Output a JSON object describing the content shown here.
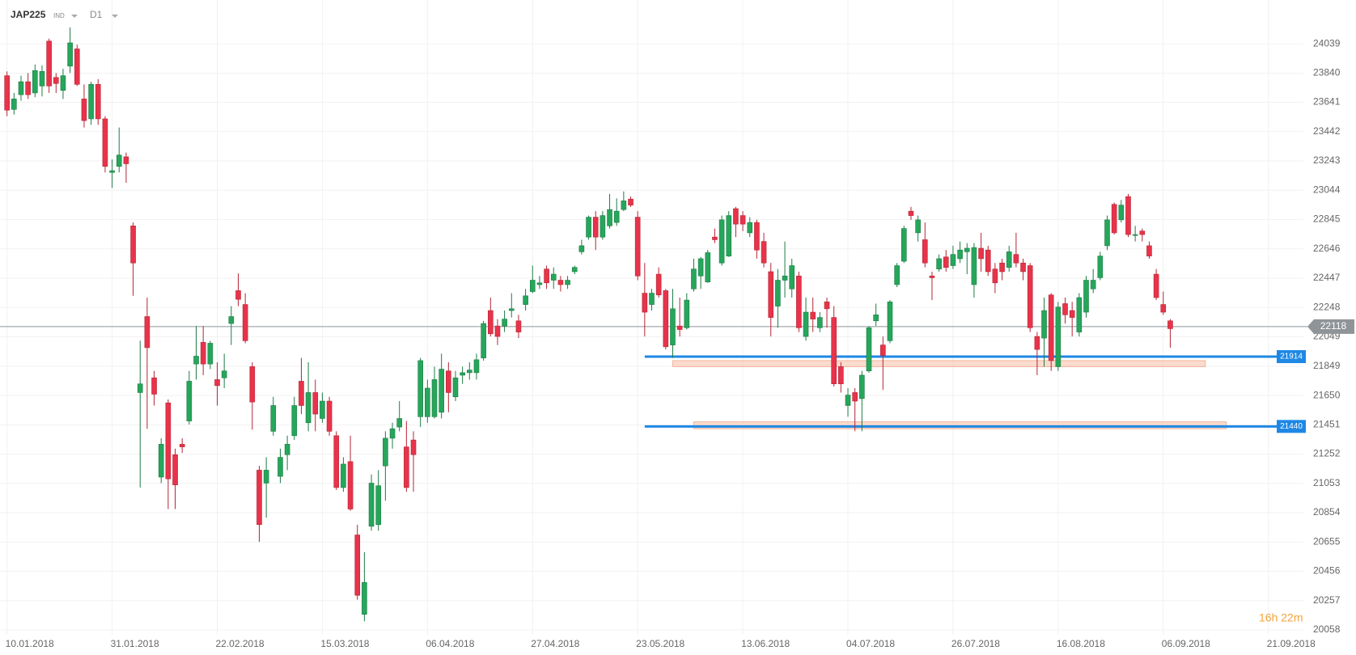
{
  "chart_data": {
    "type": "candlestick",
    "title": "JAP225",
    "badge": "IND",
    "timeframe": "D1",
    "timer": "16h 22m",
    "up_color": "#26a65b",
    "down_color": "#e8334a",
    "grid": true,
    "xlim": [
      -1,
      185
    ],
    "ylim": [
      20025,
      24336
    ],
    "xticks": [
      {
        "value": 0,
        "label": "10.01.2018"
      },
      {
        "value": 15,
        "label": "31.01.2018"
      },
      {
        "value": 30,
        "label": "22.02.2018"
      },
      {
        "value": 45,
        "label": "15.03.2018"
      },
      {
        "value": 60,
        "label": "06.04.2018"
      },
      {
        "value": 75,
        "label": "27.04.2018"
      },
      {
        "value": 90,
        "label": "23.05.2018"
      },
      {
        "value": 105,
        "label": "13.06.2018"
      },
      {
        "value": 120,
        "label": "04.07.2018"
      },
      {
        "value": 135,
        "label": "26.07.2018"
      },
      {
        "value": 150,
        "label": "16.08.2018"
      },
      {
        "value": 165,
        "label": "06.09.2018"
      },
      {
        "value": 180,
        "label": "21.09.2018"
      }
    ],
    "yticks": [
      24039,
      23840,
      23641,
      23442,
      23243,
      23044,
      22845,
      22646,
      22447,
      22248,
      22049,
      21849,
      21650,
      21451,
      21252,
      21053,
      20854,
      20655,
      20456,
      20257,
      20058
    ],
    "current_price": 22118,
    "levels": [
      {
        "value": 21914,
        "from": 91
      },
      {
        "value": 21440,
        "from": 91
      }
    ],
    "zones": [
      {
        "from": 95,
        "to": 171,
        "low": 21846,
        "high": 21887
      },
      {
        "from": 98,
        "to": 174,
        "low": 21424,
        "high": 21471
      }
    ],
    "open": [
      23822,
      23593,
      23693,
      23781,
      23705,
      23752,
      24057,
      23810,
      23722,
      23887,
      24004,
      23664,
      23529,
      23763,
      23529,
      23165,
      23206,
      23271,
      22802,
      21670,
      22186,
      21770,
      21096,
      21600,
      21248,
      21319,
      21477,
      21864,
      22011,
      21864,
      21758,
      21770,
      22139,
      22362,
      22268,
      21846,
      21143,
      21055,
      21407,
      21101,
      21248,
      21377,
      21747,
      21465,
      21670,
      21494,
      21612,
      21377,
      21025,
      21201,
      20703,
      20164,
      20762,
      20773,
      21172,
      21360,
      21436,
      21301,
      21348,
      21506,
      21506,
      21506,
      21536,
      21817,
      21641,
      21788,
      21805,
      21805,
      21905,
      22227,
      22122,
      22122,
      22227,
      22157,
      22268,
      22356,
      22403,
      22509,
      22433,
      22433,
      22403,
      22491,
      22626,
      22726,
      22861,
      22726,
      22802,
      22825,
      22913,
      22984,
      22861,
      22345,
      22268,
      22474,
      22362,
      21993,
      22122,
      22110,
      22374,
      22462,
      22421,
      22726,
      22550,
      22597,
      22919,
      22872,
      22755,
      22825,
      22696,
      22491,
      22257,
      22433,
      22374,
      22462,
      22051,
      22216,
      22110,
      22286,
      22180,
      21846,
      21582,
      21670,
      21629,
      21817,
      22157,
      21993,
      22022,
      22403,
      22562,
      22902,
      22755,
      22708,
      22462,
      22509,
      22591,
      22532,
      22579,
      22626,
      22403,
      22650,
      22638,
      22509,
      22550,
      22520,
      22608,
      22550,
      22532,
      22051,
      22040,
      22333,
      21846,
      22274,
      22227,
      22081,
      22216,
      22374,
      22450,
      22667,
      22948,
      22843,
      23001,
      22737,
      22767,
      22667,
      22474,
      22268,
      22157
    ],
    "high": [
      23851,
      23705,
      23822,
      23840,
      23898,
      23892,
      24074,
      23840,
      23869,
      24150,
      24033,
      23763,
      23781,
      23799,
      23547,
      23253,
      23470,
      23300,
      22825,
      22022,
      22315,
      21817,
      21360,
      21623,
      21289,
      21360,
      21817,
      22122,
      22122,
      22022,
      21876,
      21934,
      22257,
      22479,
      22345,
      21876,
      21172,
      21231,
      21641,
      21289,
      21377,
      21641,
      21905,
      21876,
      21758,
      21670,
      21641,
      21407,
      21231,
      21377,
      20773,
      20586,
      21114,
      21143,
      21407,
      21465,
      21612,
      21477,
      21407,
      21905,
      21758,
      21846,
      21934,
      21876,
      21817,
      21846,
      21876,
      21934,
      22157,
      22315,
      22169,
      22227,
      22345,
      22198,
      22374,
      22532,
      22462,
      22532,
      22520,
      22462,
      22462,
      22532,
      22708,
      22872,
      22902,
      22902,
      23019,
      22989,
      23036,
      23001,
      22902,
      22550,
      22374,
      22520,
      22374,
      22374,
      22315,
      22345,
      22579,
      22591,
      22638,
      22784,
      22872,
      22902,
      22931,
      22902,
      22861,
      22843,
      22755,
      22550,
      22509,
      22696,
      22579,
      22491,
      22315,
      22315,
      22216,
      22315,
      22257,
      21876,
      21700,
      21700,
      21817,
      22122,
      22274,
      22051,
      22298,
      22550,
      22802,
      22931,
      22872,
      22825,
      22491,
      22608,
      22638,
      22667,
      22696,
      22685,
      22685,
      22755,
      22667,
      22550,
      22579,
      22667,
      22755,
      22579,
      22550,
      22081,
      22315,
      22345,
      22286,
      22315,
      22286,
      22345,
      22462,
      22509,
      22626,
      22872,
      22960,
      22978,
      23019,
      22802,
      22784,
      22696,
      22509,
      22356,
      22169
    ],
    "low": [
      23547,
      23558,
      23652,
      23664,
      23676,
      23681,
      23705,
      23705,
      23664,
      23840,
      23752,
      23470,
      23488,
      23488,
      23165,
      23060,
      23165,
      23095,
      22327,
      21025,
      21424,
      21582,
      21055,
      20879,
      20879,
      21260,
      21453,
      21758,
      21788,
      21829,
      21582,
      21700,
      21993,
      22257,
      22005,
      21418,
      20656,
      20820,
      21377,
      21055,
      21143,
      21348,
      21524,
      21407,
      21407,
      21465,
      21377,
      21008,
      20996,
      20867,
      20263,
      20117,
      20732,
      20732,
      20936,
      21289,
      21407,
      20996,
      20996,
      21436,
      21465,
      21494,
      21494,
      21536,
      21612,
      21729,
      21758,
      21758,
      21887,
      22051,
      21993,
      22081,
      22180,
      22040,
      22227,
      22345,
      22374,
      22374,
      22374,
      22356,
      22374,
      22474,
      22608,
      22708,
      22638,
      22708,
      22784,
      22802,
      22902,
      22931,
      22433,
      22051,
      22227,
      22315,
      21963,
      21905,
      22051,
      22098,
      22356,
      22374,
      22415,
      22685,
      22532,
      22591,
      22726,
      22767,
      22726,
      22579,
      22520,
      22051,
      22110,
      22315,
      22315,
      22081,
      22022,
      22081,
      22081,
      22110,
      21711,
      21670,
      21506,
      21407,
      21407,
      21805,
      22122,
      21688,
      22005,
      22386,
      22550,
      22843,
      22696,
      22520,
      22298,
      22491,
      22491,
      22509,
      22550,
      22474,
      22315,
      22491,
      22462,
      22345,
      22433,
      22491,
      22520,
      22433,
      22081,
      21788,
      21846,
      21817,
      21817,
      22139,
      22051,
      22051,
      22180,
      22345,
      22433,
      22638,
      22743,
      22825,
      22726,
      22696,
      22696,
      22579,
      22298,
      22198,
      21975
    ],
    "close": [
      23588,
      23664,
      23781,
      23693,
      23857,
      23851,
      23752,
      23769,
      23822,
      24045,
      23763,
      23517,
      23763,
      23529,
      23206,
      23177,
      23283,
      23224,
      22550,
      21729,
      21975,
      21659,
      21319,
      21084,
      21043,
      21301,
      21747,
      21917,
      21864,
      22005,
      21717,
      21817,
      22186,
      22303,
      22022,
      21606,
      20773,
      21143,
      21582,
      21230,
      21319,
      21582,
      21582,
      21670,
      21524,
      21612,
      21407,
      21025,
      21184,
      20879,
      20293,
      20381,
      21055,
      21037,
      21360,
      21424,
      21494,
      21025,
      21248,
      21887,
      21700,
      21758,
      21829,
      21670,
      21770,
      21805,
      21823,
      21893,
      22139,
      22069,
      22051,
      22169,
      22239,
      22081,
      22327,
      22433,
      22415,
      22415,
      22474,
      22403,
      22433,
      22520,
      22667,
      22861,
      22726,
      22872,
      22913,
      22902,
      22972,
      22943,
      22462,
      22216,
      22345,
      22333,
      21981,
      22239,
      22098,
      22298,
      22509,
      22579,
      22620,
      22708,
      22843,
      22872,
      22814,
      22814,
      22825,
      22638,
      22550,
      22180,
      22433,
      22462,
      22532,
      22110,
      22216,
      22169,
      22180,
      22239,
      21729,
      21729,
      21653,
      21612,
      21788,
      22110,
      22198,
      21922,
      22286,
      22532,
      22784,
      22872,
      22843,
      22550,
      22450,
      22579,
      22520,
      22608,
      22638,
      22650,
      22655,
      22579,
      22491,
      22415,
      22491,
      22626,
      22550,
      22491,
      22110,
      21963,
      22227,
      21887,
      22251,
      22198,
      22180,
      22315,
      22433,
      22433,
      22597,
      22843,
      22755,
      22943,
      22743,
      22743,
      22743,
      22597,
      22315,
      22216,
      22104
    ]
  }
}
